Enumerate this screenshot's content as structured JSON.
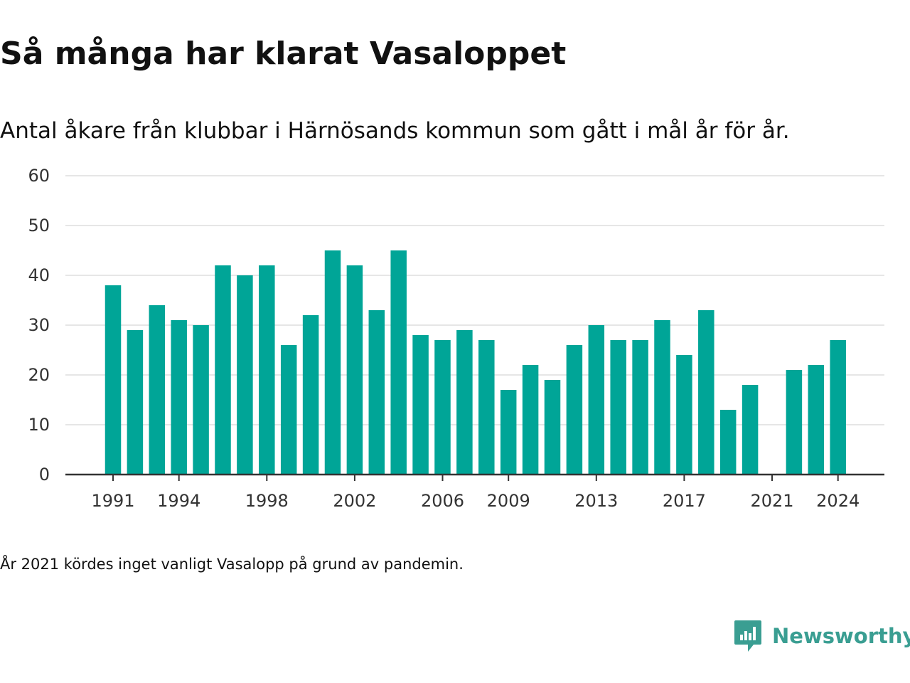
{
  "title": "Så många har klarat Vasaloppet",
  "subtitle": "Antal åkare från klubbar i Härnösands kommun som gått i mål år för år.",
  "footnote": "År 2021 kördes inget vanligt Vasalopp på grund av pandemin.",
  "brand": {
    "name": "Newsworthy",
    "icon": "newsworthy-logo-icon",
    "color": "#3a9e92"
  },
  "colors": {
    "bar": "#00a597",
    "grid": "#dddddd",
    "axis": "#333333",
    "text": "#111111",
    "tick_text": "#333333"
  },
  "chart_data": {
    "type": "bar",
    "x": [
      1991,
      1992,
      1993,
      1994,
      1995,
      1996,
      1997,
      1998,
      1999,
      2000,
      2001,
      2002,
      2003,
      2004,
      2005,
      2006,
      2007,
      2008,
      2009,
      2010,
      2011,
      2012,
      2013,
      2014,
      2015,
      2016,
      2017,
      2018,
      2019,
      2020,
      2021,
      2022,
      2023,
      2024
    ],
    "values": [
      38,
      29,
      34,
      31,
      30,
      42,
      40,
      42,
      26,
      32,
      45,
      42,
      33,
      45,
      28,
      27,
      29,
      27,
      17,
      22,
      19,
      26,
      30,
      27,
      27,
      31,
      24,
      33,
      13,
      18,
      null,
      21,
      22,
      27
    ],
    "x_ticks": [
      "1991",
      "1994",
      "1998",
      "2002",
      "2006",
      "2009",
      "2013",
      "2017",
      "2021",
      "2024"
    ],
    "y_ticks": [
      0,
      10,
      20,
      30,
      40,
      50,
      60
    ],
    "ylim": [
      0,
      60
    ],
    "grid": true,
    "legend": "none"
  }
}
